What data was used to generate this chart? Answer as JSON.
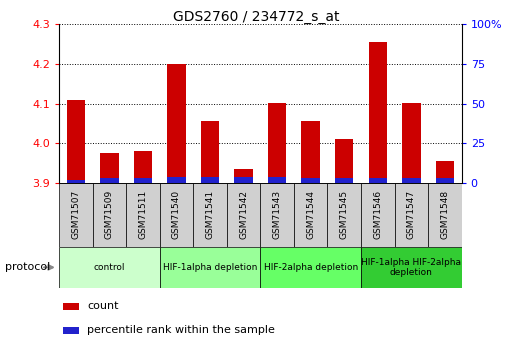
{
  "title": "GDS2760 / 234772_s_at",
  "samples": [
    "GSM71507",
    "GSM71509",
    "GSM71511",
    "GSM71540",
    "GSM71541",
    "GSM71542",
    "GSM71543",
    "GSM71544",
    "GSM71545",
    "GSM71546",
    "GSM71547",
    "GSM71548"
  ],
  "count_values": [
    4.11,
    3.975,
    3.98,
    4.2,
    4.055,
    3.935,
    4.1,
    4.055,
    4.01,
    4.255,
    4.1,
    3.955
  ],
  "percentile_values": [
    2,
    3,
    3,
    4,
    4,
    4,
    4,
    3,
    3,
    3,
    3,
    3
  ],
  "ylim_left": [
    3.9,
    4.3
  ],
  "ylim_right": [
    0,
    100
  ],
  "yticks_left": [
    3.9,
    4.0,
    4.1,
    4.2,
    4.3
  ],
  "yticks_right": [
    0,
    25,
    50,
    75,
    100
  ],
  "ytick_labels_right": [
    "0",
    "25",
    "50",
    "75",
    "100%"
  ],
  "group_spans": [
    {
      "start": 0,
      "end": 2,
      "color": "#ccffcc",
      "label": "control"
    },
    {
      "start": 3,
      "end": 5,
      "color": "#99ff99",
      "label": "HIF-1alpha depletion"
    },
    {
      "start": 6,
      "end": 8,
      "color": "#66ff66",
      "label": "HIF-2alpha depletion"
    },
    {
      "start": 9,
      "end": 11,
      "color": "#33cc33",
      "label": "HIF-1alpha HIF-2alpha\ndepletion"
    }
  ],
  "bar_color_red": "#cc0000",
  "bar_color_blue": "#2222cc",
  "baseline": 3.9,
  "bar_width": 0.55,
  "sample_box_color": "#d0d0d0",
  "plot_bg": "#ffffff"
}
